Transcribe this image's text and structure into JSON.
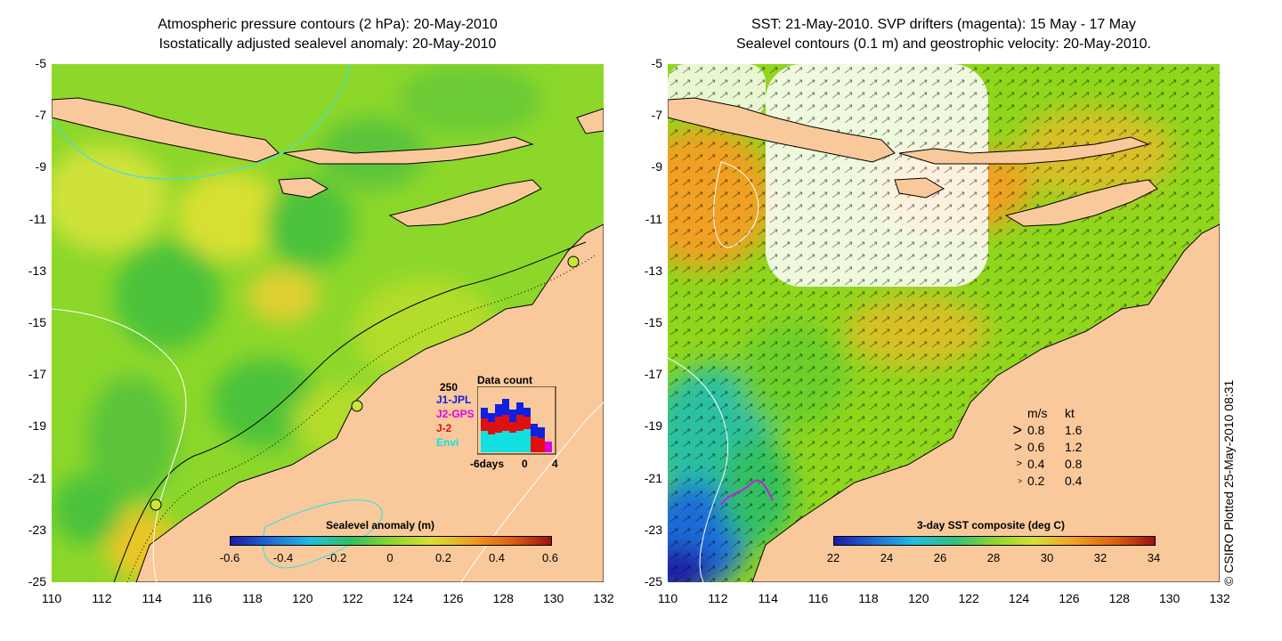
{
  "left_panel": {
    "title_line1": "Atmospheric pressure contours (2 hPa): 20-May-2010",
    "title_line2": "Isostatically adjusted sealevel anomaly: 20-May-2010",
    "colorbar": {
      "title": "Sealevel anomaly (m)",
      "ticks": [
        "-0.6",
        "-0.4",
        "-0.2",
        "0",
        "0.2",
        "0.4",
        "0.6"
      ],
      "range": [
        -0.6,
        0.6
      ]
    },
    "inset": {
      "title": "Data count",
      "max_label": "250",
      "missions": [
        {
          "name": "J1-JPL",
          "color": "#1020e0"
        },
        {
          "name": "J2-GPS",
          "color": "#e000e0"
        },
        {
          "name": "J-2",
          "color": "#e01010"
        },
        {
          "name": "Envi",
          "color": "#10e0e0"
        }
      ],
      "x_labels": [
        "-6days",
        "0",
        "4"
      ]
    }
  },
  "right_panel": {
    "title_line1": "SST: 21-May-2010. SVP drifters (magenta): 15 May - 17 May",
    "title_line2": "Sealevel contours (0.1 m) and geostrophic velocity: 20-May-2010.",
    "colorbar": {
      "title": "3-day SST composite (deg C)",
      "ticks": [
        "22",
        "24",
        "26",
        "28",
        "30",
        "32",
        "34"
      ],
      "range": [
        22,
        34
      ]
    },
    "velocity_legend": {
      "header_ms": "m/s",
      "header_kt": "kt",
      "rows": [
        {
          "ms": "0.8",
          "kt": "1.6"
        },
        {
          "ms": "0.6",
          "kt": "1.2"
        },
        {
          "ms": "0.4",
          "kt": "0.8"
        },
        {
          "ms": "0.2",
          "kt": "0.4"
        }
      ]
    }
  },
  "axes": {
    "y_ticks": [
      "-5",
      "-7",
      "-9",
      "-11",
      "-13",
      "-15",
      "-17",
      "-19",
      "-21",
      "-23",
      "-25"
    ],
    "x_ticks": [
      "110",
      "112",
      "114",
      "116",
      "118",
      "120",
      "122",
      "124",
      "126",
      "128",
      "130",
      "132"
    ],
    "lon_range": [
      110,
      132
    ],
    "lat_range": [
      -25,
      -5
    ]
  },
  "credit": "© CSIRO Plotted 25-May-2010 08:31",
  "colors": {
    "land": "#f9c99b",
    "ocean_base_left": "#7ed321",
    "ocean_base_right": "#8fd61c",
    "contour_cyan": "#40e0e0",
    "drifter_magenta": "#c020e0"
  }
}
